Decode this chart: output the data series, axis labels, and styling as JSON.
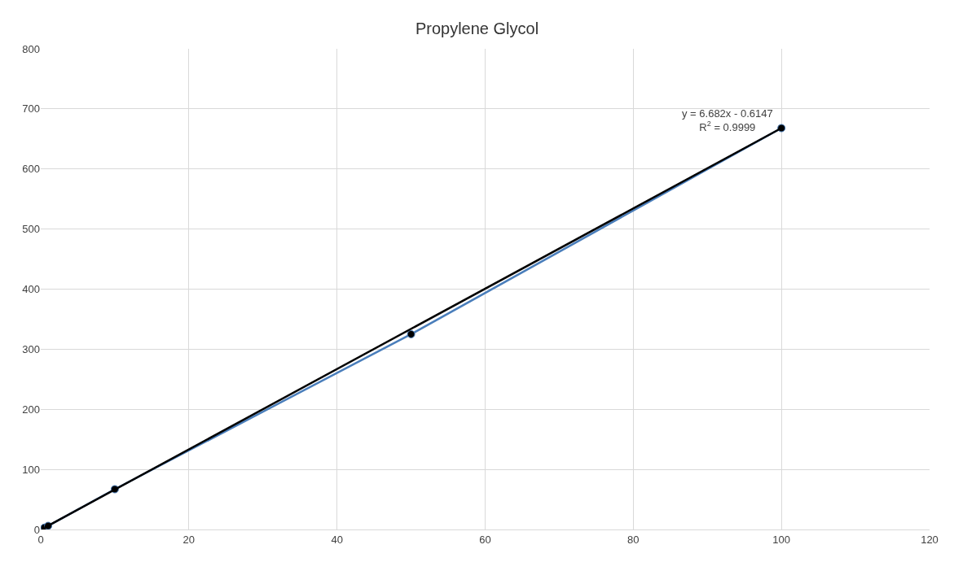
{
  "chart_data": {
    "type": "line",
    "title": "Propylene Glycol",
    "series": [
      {
        "color": "#4a7ebb",
        "marker": "circle",
        "x": [
          0.5,
          1,
          10,
          50,
          100
        ],
        "values": [
          3,
          6,
          67,
          325,
          668
        ]
      },
      {
        "color": "#000000",
        "marker": "none",
        "x": [
          0.5,
          100
        ],
        "values": [
          3,
          668
        ]
      }
    ],
    "xlim": [
      0,
      120
    ],
    "xticks": [
      0,
      20,
      40,
      60,
      80,
      100,
      120
    ],
    "ylim": [
      0,
      800
    ],
    "yticks": [
      0,
      100,
      200,
      300,
      400,
      500,
      600,
      700,
      800
    ],
    "grid": true,
    "annotations": [
      {
        "text": "y = 6.682x - 0.6147\nR$^{2}$ = 0.9999",
        "x": 100,
        "y": 668
      }
    ]
  }
}
